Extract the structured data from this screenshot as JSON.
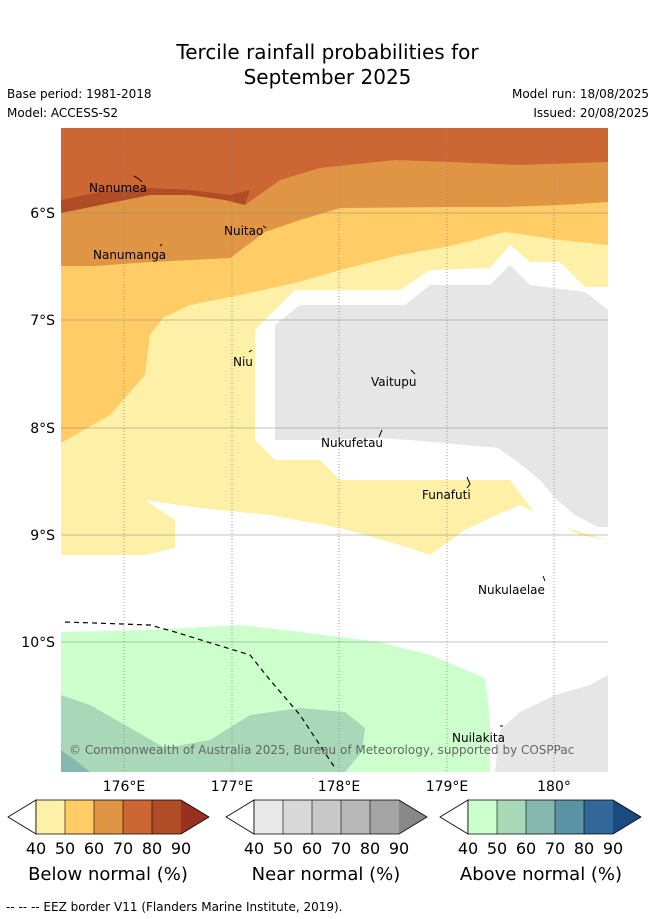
{
  "title_line1": "Tercile rainfall probabilities for",
  "title_line2": "September 2025",
  "base_period": "Base period: 1981-2018",
  "model": "Model: ACCESS-S2",
  "model_run": "Model run: 18/08/2025",
  "issued": "Issued: 20/08/2025",
  "copyright": "© Commonwealth of Australia 2025, Bureau of Meteorology, supported by COSPPac",
  "lat_labels": [
    "6°S",
    "7°S",
    "8°S",
    "9°S",
    "10°S"
  ],
  "lon_labels": [
    "176°E",
    "177°E",
    "178°E",
    "179°E",
    "180°"
  ],
  "places": [
    "Nanumea",
    "Nuitao",
    "Nanumanga",
    "Niu",
    "Vaitupu",
    "Nukufetau",
    "Funafuti",
    "Nukulaelae",
    "Nuilakita"
  ],
  "legends": [
    {
      "title": "Below normal (%)",
      "ticks": [
        "40",
        "50",
        "60",
        "70",
        "80",
        "90"
      ],
      "colors": [
        "#fff0a8",
        "#ffcc66",
        "#e09545",
        "#cc6633",
        "#b04c26",
        "#993020"
      ]
    },
    {
      "title": "Near normal (%)",
      "ticks": [
        "40",
        "50",
        "60",
        "70",
        "80",
        "90"
      ],
      "colors": [
        "#e8e8e8",
        "#d8d8d8",
        "#c8c8c8",
        "#b8b8b8",
        "#a4a4a4",
        "#888888"
      ]
    },
    {
      "title": "Above normal (%)",
      "ticks": [
        "40",
        "50",
        "60",
        "70",
        "80",
        "90"
      ],
      "colors": [
        "#ccffcc",
        "#a8d8b8",
        "#86b8b0",
        "#5a94a4",
        "#336699",
        "#1a4a80"
      ]
    }
  ],
  "footer": "--  --  -- EEZ border V11 (Flanders Marine Institute, 2019)."
}
